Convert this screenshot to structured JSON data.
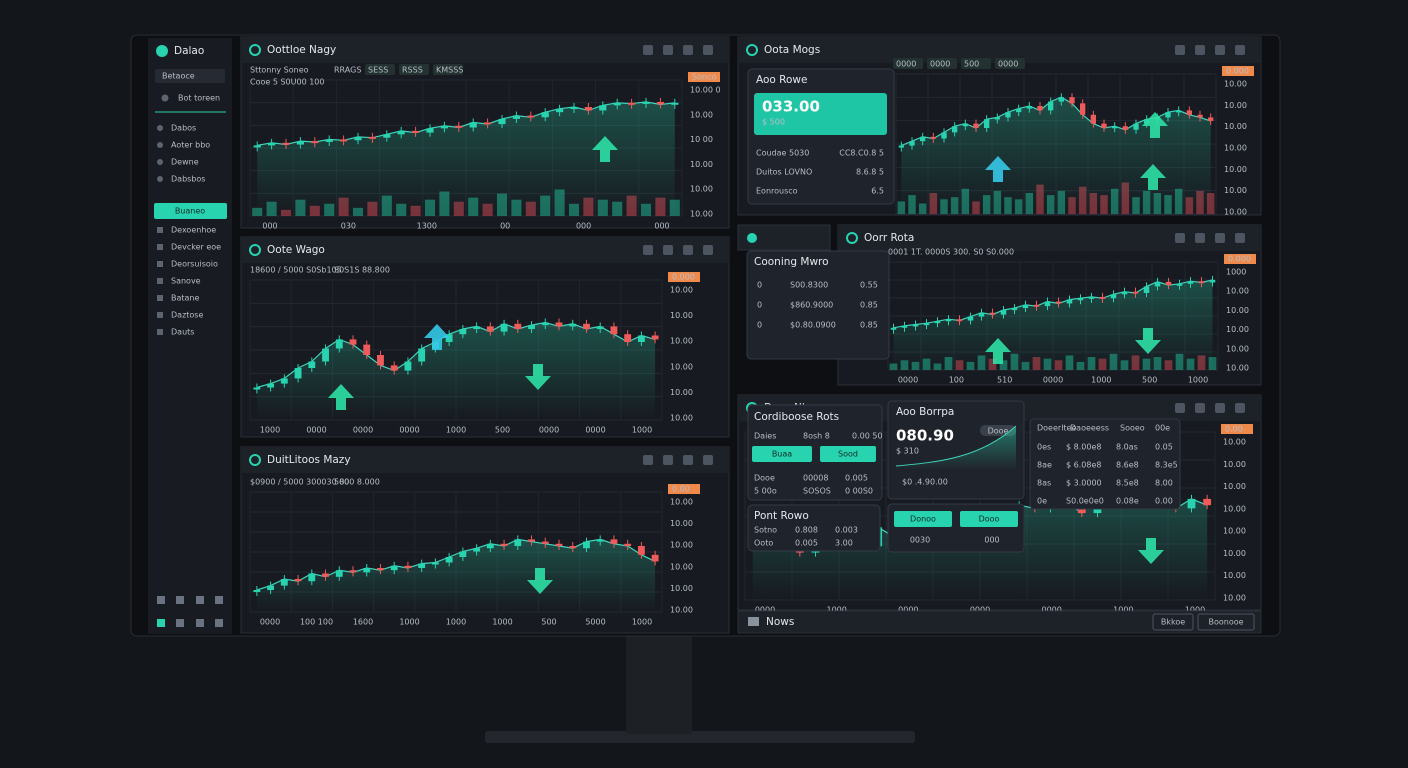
{
  "sidebar": {
    "brand": "Dalao",
    "select": "Betaoce",
    "search": "Bot toreen",
    "items": [
      "Dabos",
      "Aoter bbo",
      "Dewne",
      "Dabsbos"
    ],
    "button": "Buaneo",
    "links": [
      "Dexoenhoe",
      "Devcker eoe",
      "Deorsuisoio",
      "Sanove",
      "Batane",
      "Daztose",
      "Dauts"
    ]
  },
  "panels": [
    {
      "title": "Oottloe Nagy",
      "info": "Sttonny Soneo",
      "tags": [
        "RRAGS",
        "SESS",
        "RSSS",
        "KMSSS"
      ],
      "sub": "Cooe 5 S0U00 100",
      "badge": "Sonco",
      "axis": [
        "10.00 0",
        "10.00",
        "10 00",
        "10.00",
        "10.00",
        "10.00"
      ],
      "dates": [
        "000",
        "030",
        "1300",
        "00",
        "000",
        "000"
      ],
      "ylim": [
        0,
        100
      ],
      "prices": [
        35,
        38,
        36,
        40,
        39,
        42,
        41,
        45,
        44,
        48,
        52,
        50,
        55,
        58,
        56,
        62,
        60,
        66,
        70,
        68,
        74,
        78,
        80,
        76,
        82,
        85,
        84,
        86,
        83,
        85
      ],
      "volumes": [
        20,
        35,
        15,
        40,
        25,
        30,
        45,
        20,
        35,
        50,
        30,
        25,
        40,
        60,
        35,
        45,
        30,
        55,
        40,
        35,
        50,
        65,
        30,
        45,
        40,
        35,
        50,
        30,
        45,
        40
      ]
    },
    {
      "title": "Oote Wago",
      "info": "18600 / 5000 S0Sb105",
      "tags": [
        "S0S1S 88.800"
      ],
      "sub": "",
      "badge": "0.000",
      "axis": [
        "10.00",
        "10.00",
        "10.00",
        "10.00",
        "10.00",
        "10.00"
      ],
      "dates": [
        "1000",
        "0000",
        "0000",
        "0000",
        "1000",
        "500",
        "0000",
        "0000",
        "1000"
      ],
      "ylim": [
        0,
        100
      ],
      "prices": [
        25,
        28,
        32,
        40,
        45,
        55,
        62,
        58,
        50,
        42,
        38,
        45,
        55,
        60,
        66,
        70,
        72,
        68,
        74,
        70,
        73,
        75,
        72,
        74,
        70,
        72,
        66,
        60,
        65,
        62
      ],
      "volumes": []
    },
    {
      "title": "DuitLitoos Mazy",
      "info": "$0900 / 5000 300030 80",
      "tags": [
        "5000 8.000"
      ],
      "sub": "",
      "badge": "0.00",
      "axis": [
        "10.00",
        "10.00",
        "10.00",
        "10.00",
        "10.00",
        "10.00"
      ],
      "dates": [
        "0000",
        "100 100",
        "1600",
        "1000",
        "1000",
        "1000",
        "500",
        "5000",
        "1000"
      ],
      "ylim": [
        0,
        100
      ],
      "prices": [
        20,
        24,
        30,
        28,
        35,
        32,
        38,
        36,
        40,
        38,
        42,
        40,
        44,
        45,
        50,
        55,
        58,
        62,
        60,
        66,
        64,
        62,
        60,
        58,
        64,
        66,
        62,
        60,
        52,
        46
      ],
      "volumes": []
    },
    {
      "title": "Oota Mogs",
      "info": "",
      "tags": [
        "0000",
        "0000",
        "500",
        "0000"
      ],
      "sub": "",
      "badge": "0.000",
      "axis": [
        "10.00",
        "10.00",
        "10.00",
        "10.00",
        "10.00",
        "10.00",
        "10.00"
      ],
      "dates": [],
      "ylim": [
        0,
        100
      ],
      "prices": [
        30,
        35,
        40,
        38,
        45,
        52,
        55,
        50,
        60,
        62,
        68,
        72,
        75,
        70,
        80,
        85,
        78,
        65,
        55,
        50,
        52,
        48,
        55,
        60,
        62,
        68,
        70,
        65,
        62,
        58
      ],
      "volumes": [
        30,
        45,
        25,
        50,
        35,
        40,
        60,
        30,
        45,
        55,
        40,
        35,
        50,
        70,
        45,
        55,
        40,
        65,
        50,
        45,
        60,
        75,
        40,
        55,
        50,
        45,
        60,
        40,
        55,
        50
      ]
    },
    {
      "title": "Oorr Rota",
      "info": "0001 1T. 0000S 300. S0 S0.000",
      "tags": [],
      "sub": "",
      "badge": "0.000",
      "axis": [
        "1000",
        "10.00",
        "10.00",
        "10.00",
        "10.00",
        "10.00"
      ],
      "dates": [
        "0000",
        "100",
        "510",
        "0000",
        "1000",
        "500",
        "1000"
      ],
      "ylim": [
        0,
        100
      ],
      "prices": [
        15,
        18,
        20,
        22,
        25,
        28,
        26,
        32,
        38,
        35,
        42,
        45,
        50,
        48,
        55,
        52,
        58,
        60,
        62,
        60,
        66,
        70,
        68,
        78,
        85,
        80,
        82,
        86,
        84,
        88
      ],
      "volumes": [
        20,
        30,
        25,
        35,
        20,
        40,
        30,
        25,
        45,
        35,
        30,
        50,
        25,
        40,
        35,
        30,
        45,
        25,
        40,
        35,
        50,
        30,
        45,
        35,
        40,
        30,
        50,
        35,
        45,
        40
      ]
    },
    {
      "title": "Dosn Nlsy",
      "info": "",
      "tags": [],
      "sub": "",
      "badge": "0.00",
      "axis": [
        "10.00",
        "10.00",
        "10.00",
        "10.00",
        "10.00",
        "10.00",
        "10.00",
        "10.00"
      ],
      "dates": [
        "0000",
        "1000",
        "0000",
        "0000",
        "0000",
        "1000",
        "1000"
      ],
      "ylim": [
        0,
        100
      ],
      "prices": [
        40,
        35,
        45,
        30,
        42,
        38,
        50,
        34,
        46,
        40,
        38,
        44,
        36,
        42,
        48,
        52,
        56,
        60,
        58,
        64,
        62,
        55,
        68,
        72,
        60,
        66,
        62,
        58,
        64,
        60
      ],
      "volumes": []
    }
  ],
  "order": {
    "title": "Aoo Rowe",
    "price": "033.00",
    "amount": "$ 500",
    "rows": [
      [
        "Coudae 5030",
        "CC8.C0.8 5"
      ],
      [
        "Duitos LOVNO",
        "8.6.8 5"
      ],
      [
        "Eonrousco",
        "6.5"
      ]
    ]
  },
  "coming": {
    "title": "Cooning Mwro",
    "rows": [
      [
        "0",
        "S00.8300",
        "0.55"
      ],
      [
        "0",
        "$860.9000",
        "0.85"
      ],
      [
        "0",
        "$0.80.0900",
        "0.85"
      ]
    ]
  },
  "book": {
    "title": "Cordiboose Rots",
    "head": [
      "Daies",
      "8osh 8",
      "0.00 50"
    ],
    "buy": "Buaa",
    "sell": "Sood",
    "rows": [
      [
        "Dooe",
        "00008",
        "0.005"
      ],
      [
        "5 00o",
        "SOSOS",
        "0 00S0"
      ]
    ]
  },
  "quick": {
    "title": "Aoo Borrpa",
    "price": "080.90",
    "amount": "$ 310",
    "pill": "Dooe",
    "foot": "$0 .4.90.00"
  },
  "actions": {
    "buttons": [
      "Donoo",
      "Dooo"
    ],
    "foot": [
      "0030",
      "000"
    ]
  },
  "point": {
    "title": "Pont Rowo",
    "rows": [
      [
        "Sotno",
        "0.808",
        "0.003"
      ],
      [
        "Ooto",
        "0.005",
        "3.00"
      ]
    ]
  },
  "list": {
    "head": [
      "Doeerltee",
      "Daoeeess",
      "Sooeo",
      "00e"
    ],
    "rows": [
      [
        "0es",
        "$ 8.00e8",
        "8.0as",
        "0.05"
      ],
      [
        "8ae",
        "$ 6.08e8",
        "8.6e8",
        "8.3e5"
      ],
      [
        "8as",
        "$ 3.0000",
        "8.5e8",
        "8.00"
      ],
      [
        "0e",
        "S0.0e0e0",
        "0.08e",
        "0.00"
      ]
    ]
  },
  "news": {
    "title": "Nows",
    "buttons": [
      "Bkkoe",
      "Boonooe"
    ]
  }
}
